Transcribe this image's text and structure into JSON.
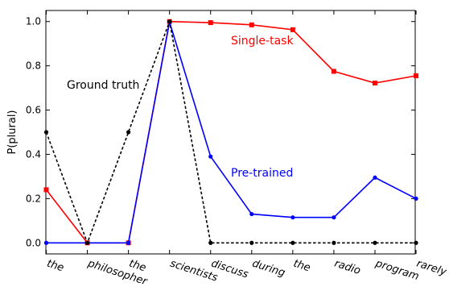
{
  "chart_data": {
    "type": "line",
    "title": "",
    "xlabel": "",
    "ylabel": "P(plural)",
    "categories": [
      "the",
      "philosopher",
      "the",
      "scientists",
      "discuss",
      "during",
      "the",
      "radio",
      "program",
      "rarely"
    ],
    "ylim": [
      -0.05,
      1.05
    ],
    "yticks": [
      "0.0",
      "0.2",
      "0.4",
      "0.6",
      "0.8",
      "1.0"
    ],
    "grid": false,
    "series": [
      {
        "name": "Ground truth",
        "color": "#000000",
        "style": "dotted",
        "marker": "circle",
        "values": [
          0.5,
          0.0,
          0.5,
          1.0,
          0.0,
          0.0,
          0.0,
          0.0,
          0.0,
          0.0
        ]
      },
      {
        "name": "Single-task",
        "color": "#ff0000",
        "style": "solid",
        "marker": "square",
        "values": [
          0.24,
          0.0,
          0.0,
          1.0,
          0.995,
          0.985,
          0.963,
          0.775,
          0.722,
          0.755
        ]
      },
      {
        "name": "Pre-trained",
        "color": "#0000ff",
        "style": "solid",
        "marker": "circle",
        "values": [
          0.0,
          0.0,
          0.0,
          0.998,
          0.39,
          0.13,
          0.115,
          0.115,
          0.295,
          0.2
        ]
      }
    ]
  }
}
